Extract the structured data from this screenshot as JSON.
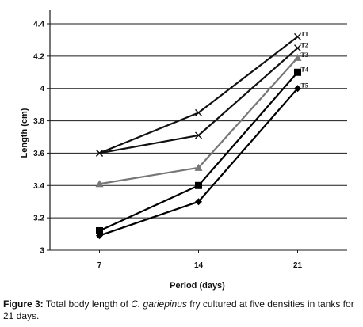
{
  "chart_data": {
    "type": "line",
    "xlabel": "Period (days)",
    "ylabel": "Length (cm)",
    "x": [
      7,
      14,
      21
    ],
    "ylim": [
      3,
      4.4
    ],
    "yticks": [
      "3",
      "3.2",
      "3.4",
      "3.6",
      "3.8",
      "4",
      "4.2",
      "4.4"
    ],
    "grid": "horizontal",
    "series": [
      {
        "name": "T1",
        "values": [
          3.6,
          3.85,
          4.32
        ],
        "marker": "x"
      },
      {
        "name": "T2",
        "values": [
          3.6,
          3.71,
          4.25
        ],
        "marker": "x"
      },
      {
        "name": "T3",
        "values": [
          3.41,
          3.51,
          4.19
        ],
        "marker": "triangle"
      },
      {
        "name": "T4",
        "values": [
          3.12,
          3.4,
          4.1
        ],
        "marker": "square"
      },
      {
        "name": "T5",
        "values": [
          3.09,
          3.3,
          4.0
        ],
        "marker": "diamond"
      }
    ],
    "colors": {
      "T1": "#111111",
      "T2": "#111111",
      "T3": "#777777",
      "T4": "#000000",
      "T5": "#000000"
    }
  },
  "caption": {
    "label": "Figure 3:",
    "text_before": " Total body length of ",
    "species": "C. gariepinus",
    "text_after": " fry cultured at five densities in tanks for 21 days."
  }
}
